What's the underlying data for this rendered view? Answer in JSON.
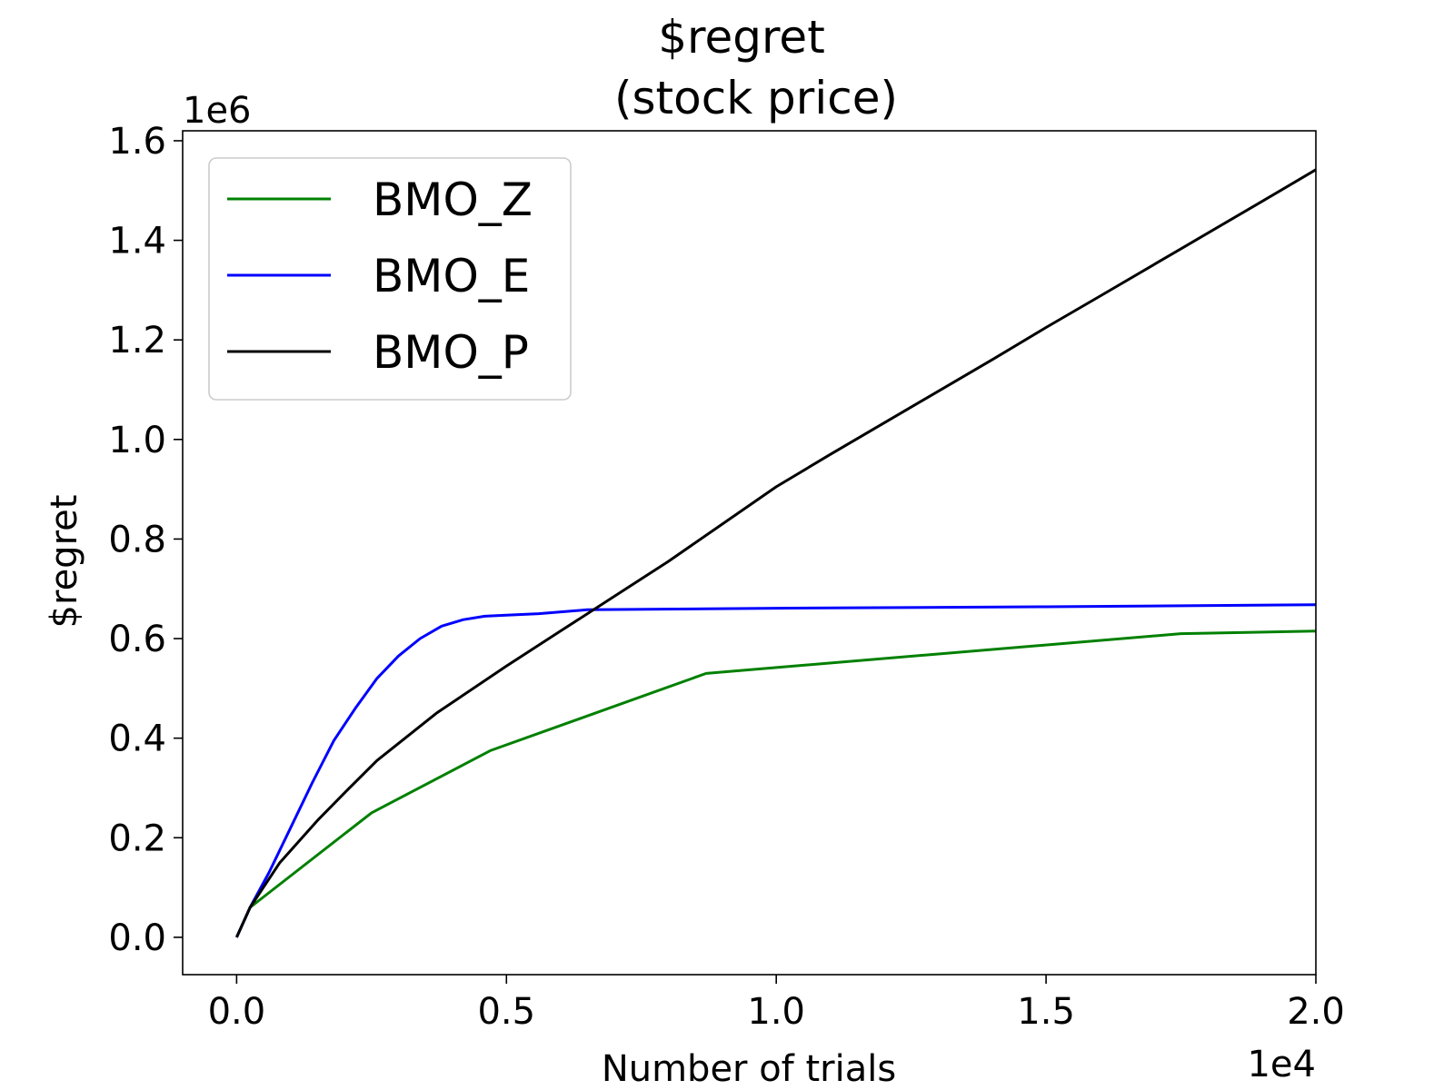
{
  "chart_data": {
    "type": "line",
    "title": [
      "$regret",
      "(stock price)"
    ],
    "xlabel": "Number of trials",
    "ylabel": "$regret",
    "x_offset_label": "1e4",
    "y_offset_label": "1e6",
    "x_scale": 10000,
    "y_scale": 1000000,
    "xlim": [
      -1000,
      20000
    ],
    "ylim": [
      -75000,
      1620000
    ],
    "x_ticks": [
      0,
      5000,
      10000,
      15000,
      20000
    ],
    "x_tick_labels": [
      "0.0",
      "0.5",
      "1.0",
      "1.5",
      "2.0"
    ],
    "y_ticks": [
      0,
      200000,
      400000,
      600000,
      800000,
      1000000,
      1200000,
      1400000,
      1600000
    ],
    "y_tick_labels": [
      "0.0",
      "0.2",
      "0.4",
      "0.6",
      "0.8",
      "1.0",
      "1.2",
      "1.4",
      "1.6"
    ],
    "grid": false,
    "legend_position": "top-left",
    "series": [
      {
        "name": "BMO_Z",
        "color": "#008000",
        "x": [
          0,
          250,
          2500,
          4700,
          8700,
          17500,
          20000
        ],
        "y": [
          0,
          60000,
          250000,
          375000,
          530000,
          610000,
          615000
        ]
      },
      {
        "name": "BMO_E",
        "color": "#0000ff",
        "x": [
          0,
          250,
          600,
          1000,
          1400,
          1800,
          2200,
          2600,
          3000,
          3400,
          3800,
          4200,
          4600,
          5000,
          5600,
          6500,
          10000,
          15000,
          20000
        ],
        "y": [
          0,
          60000,
          130000,
          220000,
          310000,
          395000,
          460000,
          520000,
          565000,
          600000,
          625000,
          638000,
          645000,
          647000,
          650000,
          658000,
          661000,
          664000,
          668000
        ]
      },
      {
        "name": "BMO_P",
        "color": "#000000",
        "x": [
          0,
          250,
          800,
          1500,
          2000,
          2600,
          3700,
          5000,
          6000,
          7000,
          8000,
          9000,
          10000,
          11000,
          12500,
          14000,
          15000,
          16000,
          17500,
          19000,
          20000
        ],
        "y": [
          0,
          60000,
          150000,
          235000,
          290000,
          355000,
          450000,
          545000,
          615000,
          685000,
          755000,
          830000,
          905000,
          970000,
          1065000,
          1160000,
          1225000,
          1288000,
          1383000,
          1478000,
          1542000
        ]
      }
    ]
  }
}
